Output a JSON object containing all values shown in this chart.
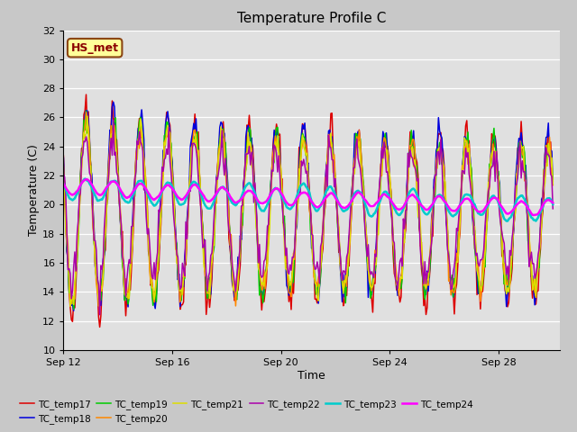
{
  "title": "Temperature Profile C",
  "xlabel": "Time",
  "ylabel": "Temperature (C)",
  "ylim": [
    10,
    32
  ],
  "yticks": [
    10,
    12,
    14,
    16,
    18,
    20,
    22,
    24,
    26,
    28,
    30,
    32
  ],
  "xtick_labels": [
    "Sep 12",
    "Sep 16",
    "Sep 20",
    "Sep 24",
    "Sep 28"
  ],
  "fig_bg_color": "#c8c8c8",
  "plot_bg": "#e0e0e0",
  "annotation_text": "HS_met",
  "annotation_bg": "#ffff99",
  "annotation_border": "#8B4513",
  "series_colors": {
    "TC_temp17": "#dd0000",
    "TC_temp18": "#0000dd",
    "TC_temp19": "#00cc00",
    "TC_temp20": "#ff8800",
    "TC_temp21": "#dddd00",
    "TC_temp22": "#aa00aa",
    "TC_temp23": "#00cccc",
    "TC_temp24": "#ff00ff"
  },
  "legend_order": [
    "TC_temp17",
    "TC_temp18",
    "TC_temp19",
    "TC_temp20",
    "TC_temp21",
    "TC_temp22",
    "TC_temp23",
    "TC_temp24"
  ]
}
